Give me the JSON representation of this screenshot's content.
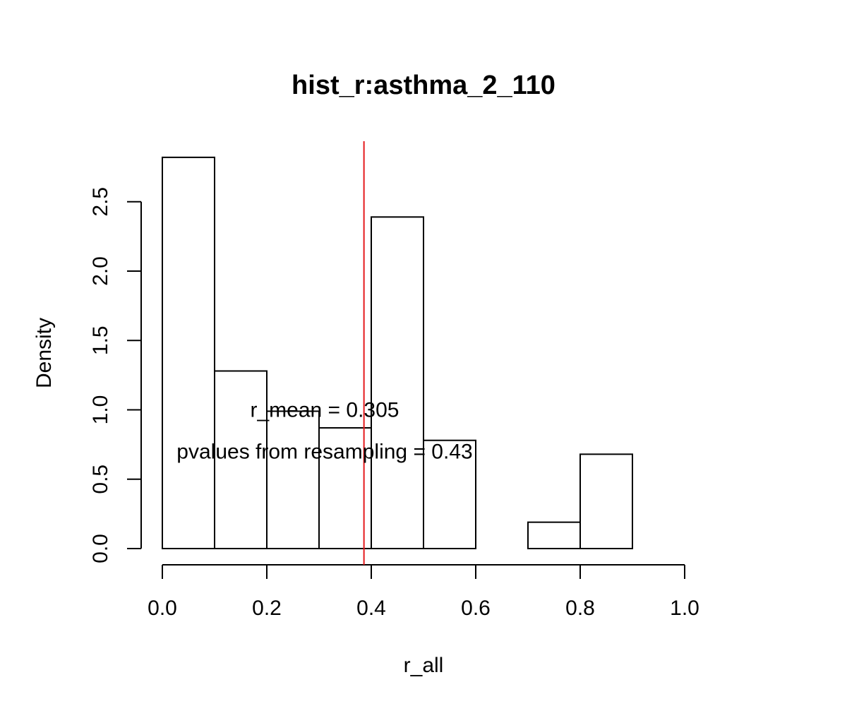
{
  "chart_data": {
    "type": "histogram",
    "title": "hist_r:asthma_2_110",
    "xlabel": "r_all",
    "ylabel": "Density",
    "xlim": [
      0.0,
      1.0
    ],
    "ylim": [
      0.0,
      2.82
    ],
    "x_ticks": [
      0.0,
      0.2,
      0.4,
      0.6,
      0.8,
      1.0
    ],
    "x_tick_labels": [
      "0.0",
      "0.2",
      "0.4",
      "0.6",
      "0.8",
      "1.0"
    ],
    "y_ticks": [
      0.0,
      0.5,
      1.0,
      1.5,
      2.0,
      2.5
    ],
    "y_tick_labels": [
      "0.0",
      "0.5",
      "1.0",
      "1.5",
      "2.0",
      "2.5"
    ],
    "bins": [
      {
        "start": 0.0,
        "end": 0.1,
        "density": 2.82
      },
      {
        "start": 0.1,
        "end": 0.2,
        "density": 1.28
      },
      {
        "start": 0.2,
        "end": 0.3,
        "density": 0.99
      },
      {
        "start": 0.3,
        "end": 0.4,
        "density": 0.87
      },
      {
        "start": 0.4,
        "end": 0.5,
        "density": 2.39
      },
      {
        "start": 0.5,
        "end": 0.6,
        "density": 0.78
      },
      {
        "start": 0.6,
        "end": 0.7,
        "density": 0.0
      },
      {
        "start": 0.7,
        "end": 0.8,
        "density": 0.19
      },
      {
        "start": 0.8,
        "end": 0.9,
        "density": 0.68
      }
    ],
    "vline": {
      "x": 0.386,
      "color": "#e41a1c"
    },
    "annotations": [
      {
        "text": "r_mean = 0.305",
        "x": 0.3,
        "y": 1.0
      },
      {
        "text": "pvalues from resampling = 0.43",
        "x": 0.3,
        "y": 0.7
      }
    ]
  }
}
